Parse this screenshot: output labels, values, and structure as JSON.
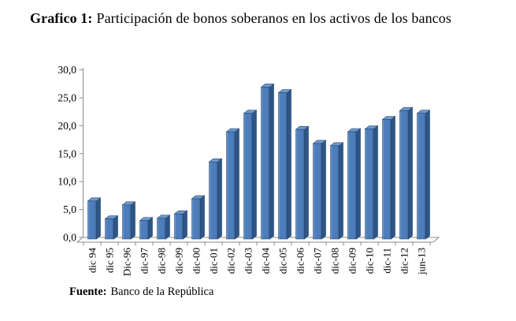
{
  "header": {
    "label": "Grafico 1:",
    "title": "Participación de bonos soberanos en los activos de los bancos"
  },
  "footer": {
    "label": "Fuente:",
    "text": "Banco de la República"
  },
  "chart_data": {
    "type": "bar",
    "style": "3d-column",
    "title": "Participación de bonos soberanos en los activos de los bancos",
    "xlabel": "",
    "ylabel": "",
    "legend": "none",
    "grid": false,
    "ylim": [
      0,
      30
    ],
    "ytick_step": 5,
    "ytick_labels": [
      "0,0",
      "5,0",
      "10,0",
      "15,0",
      "20,0",
      "25,0",
      "30,0"
    ],
    "categories": [
      "dic 94",
      "dic 95",
      "Dic-96",
      "dic-97",
      "dic-98",
      "dic-99",
      "dic-00",
      "dic-01",
      "dic-02",
      "dic-03",
      "dic-04",
      "dic-05",
      "dic-06",
      "dic-07",
      "dic-08",
      "dic-09",
      "dic-10",
      "dic-11",
      "dic-12",
      "jun-13"
    ],
    "values": [
      6.8,
      3.6,
      6.1,
      3.3,
      3.7,
      4.5,
      7.2,
      13.8,
      19.2,
      22.5,
      27.2,
      26.2,
      19.6,
      17.1,
      16.7,
      19.2,
      19.7,
      21.4,
      23.0,
      22.5
    ],
    "colors": {
      "bar_main": "#4d7dba",
      "bar_light": "#8cadd6",
      "bar_dark": "#3a6295",
      "bar_top": "#6f99cb",
      "bar_side": "#2f5586",
      "bar_stroke": "#24466f",
      "axis": "#8c8c8c",
      "floor_fill": "#ffffff",
      "text": "#000000"
    }
  }
}
